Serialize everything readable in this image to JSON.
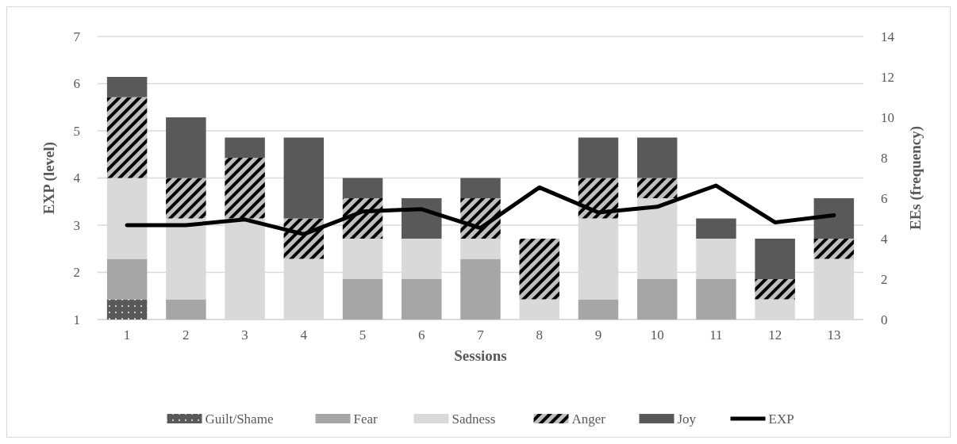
{
  "chart_data": {
    "type": "bar",
    "stacked": true,
    "categories": [
      "1",
      "2",
      "3",
      "4",
      "5",
      "6",
      "7",
      "8",
      "9",
      "10",
      "11",
      "12",
      "13"
    ],
    "xlabel": "Sessions",
    "ylabel": "EXP (level)",
    "y2label": "EEs (frequency)",
    "ylim": [
      1,
      7
    ],
    "yticks": [
      1,
      2,
      3,
      4,
      5,
      6,
      7
    ],
    "y2lim": [
      0,
      14
    ],
    "y2ticks": [
      0,
      2,
      4,
      6,
      8,
      10,
      12,
      14
    ],
    "grid": "y",
    "legend": "bottom",
    "series": [
      {
        "name": "Guilt/Shame",
        "color": "#595959",
        "axis": "y2",
        "values": [
          1,
          0,
          0,
          0,
          0,
          0,
          0,
          0,
          0,
          0,
          0,
          0,
          0
        ]
      },
      {
        "name": "Fear",
        "color": "#a6a6a6",
        "axis": "y2",
        "values": [
          2,
          1,
          0,
          0,
          2,
          2,
          3,
          0,
          1,
          2,
          2,
          0,
          0
        ]
      },
      {
        "name": "Sadness",
        "color": "#d9d9d9",
        "axis": "y2",
        "values": [
          4,
          4,
          5,
          3,
          2,
          2,
          1,
          1,
          4,
          4,
          2,
          1,
          3
        ]
      },
      {
        "name": "Anger",
        "color": "#bfbfbf",
        "axis": "y2",
        "values": [
          4,
          2,
          3,
          2,
          2,
          0,
          2,
          3,
          2,
          1,
          0,
          1,
          1
        ]
      },
      {
        "name": "Joy",
        "color": "#595959",
        "axis": "y2",
        "values": [
          1,
          3,
          1,
          4,
          1,
          2,
          1,
          0,
          2,
          2,
          1,
          2,
          2
        ]
      },
      {
        "name": "EXP",
        "type": "line",
        "color": "#000000",
        "axis": "y",
        "values": [
          3.0,
          3.0,
          3.12,
          2.81,
          3.29,
          3.34,
          2.94,
          3.8,
          3.27,
          3.39,
          3.84,
          3.06,
          3.21
        ]
      }
    ]
  }
}
